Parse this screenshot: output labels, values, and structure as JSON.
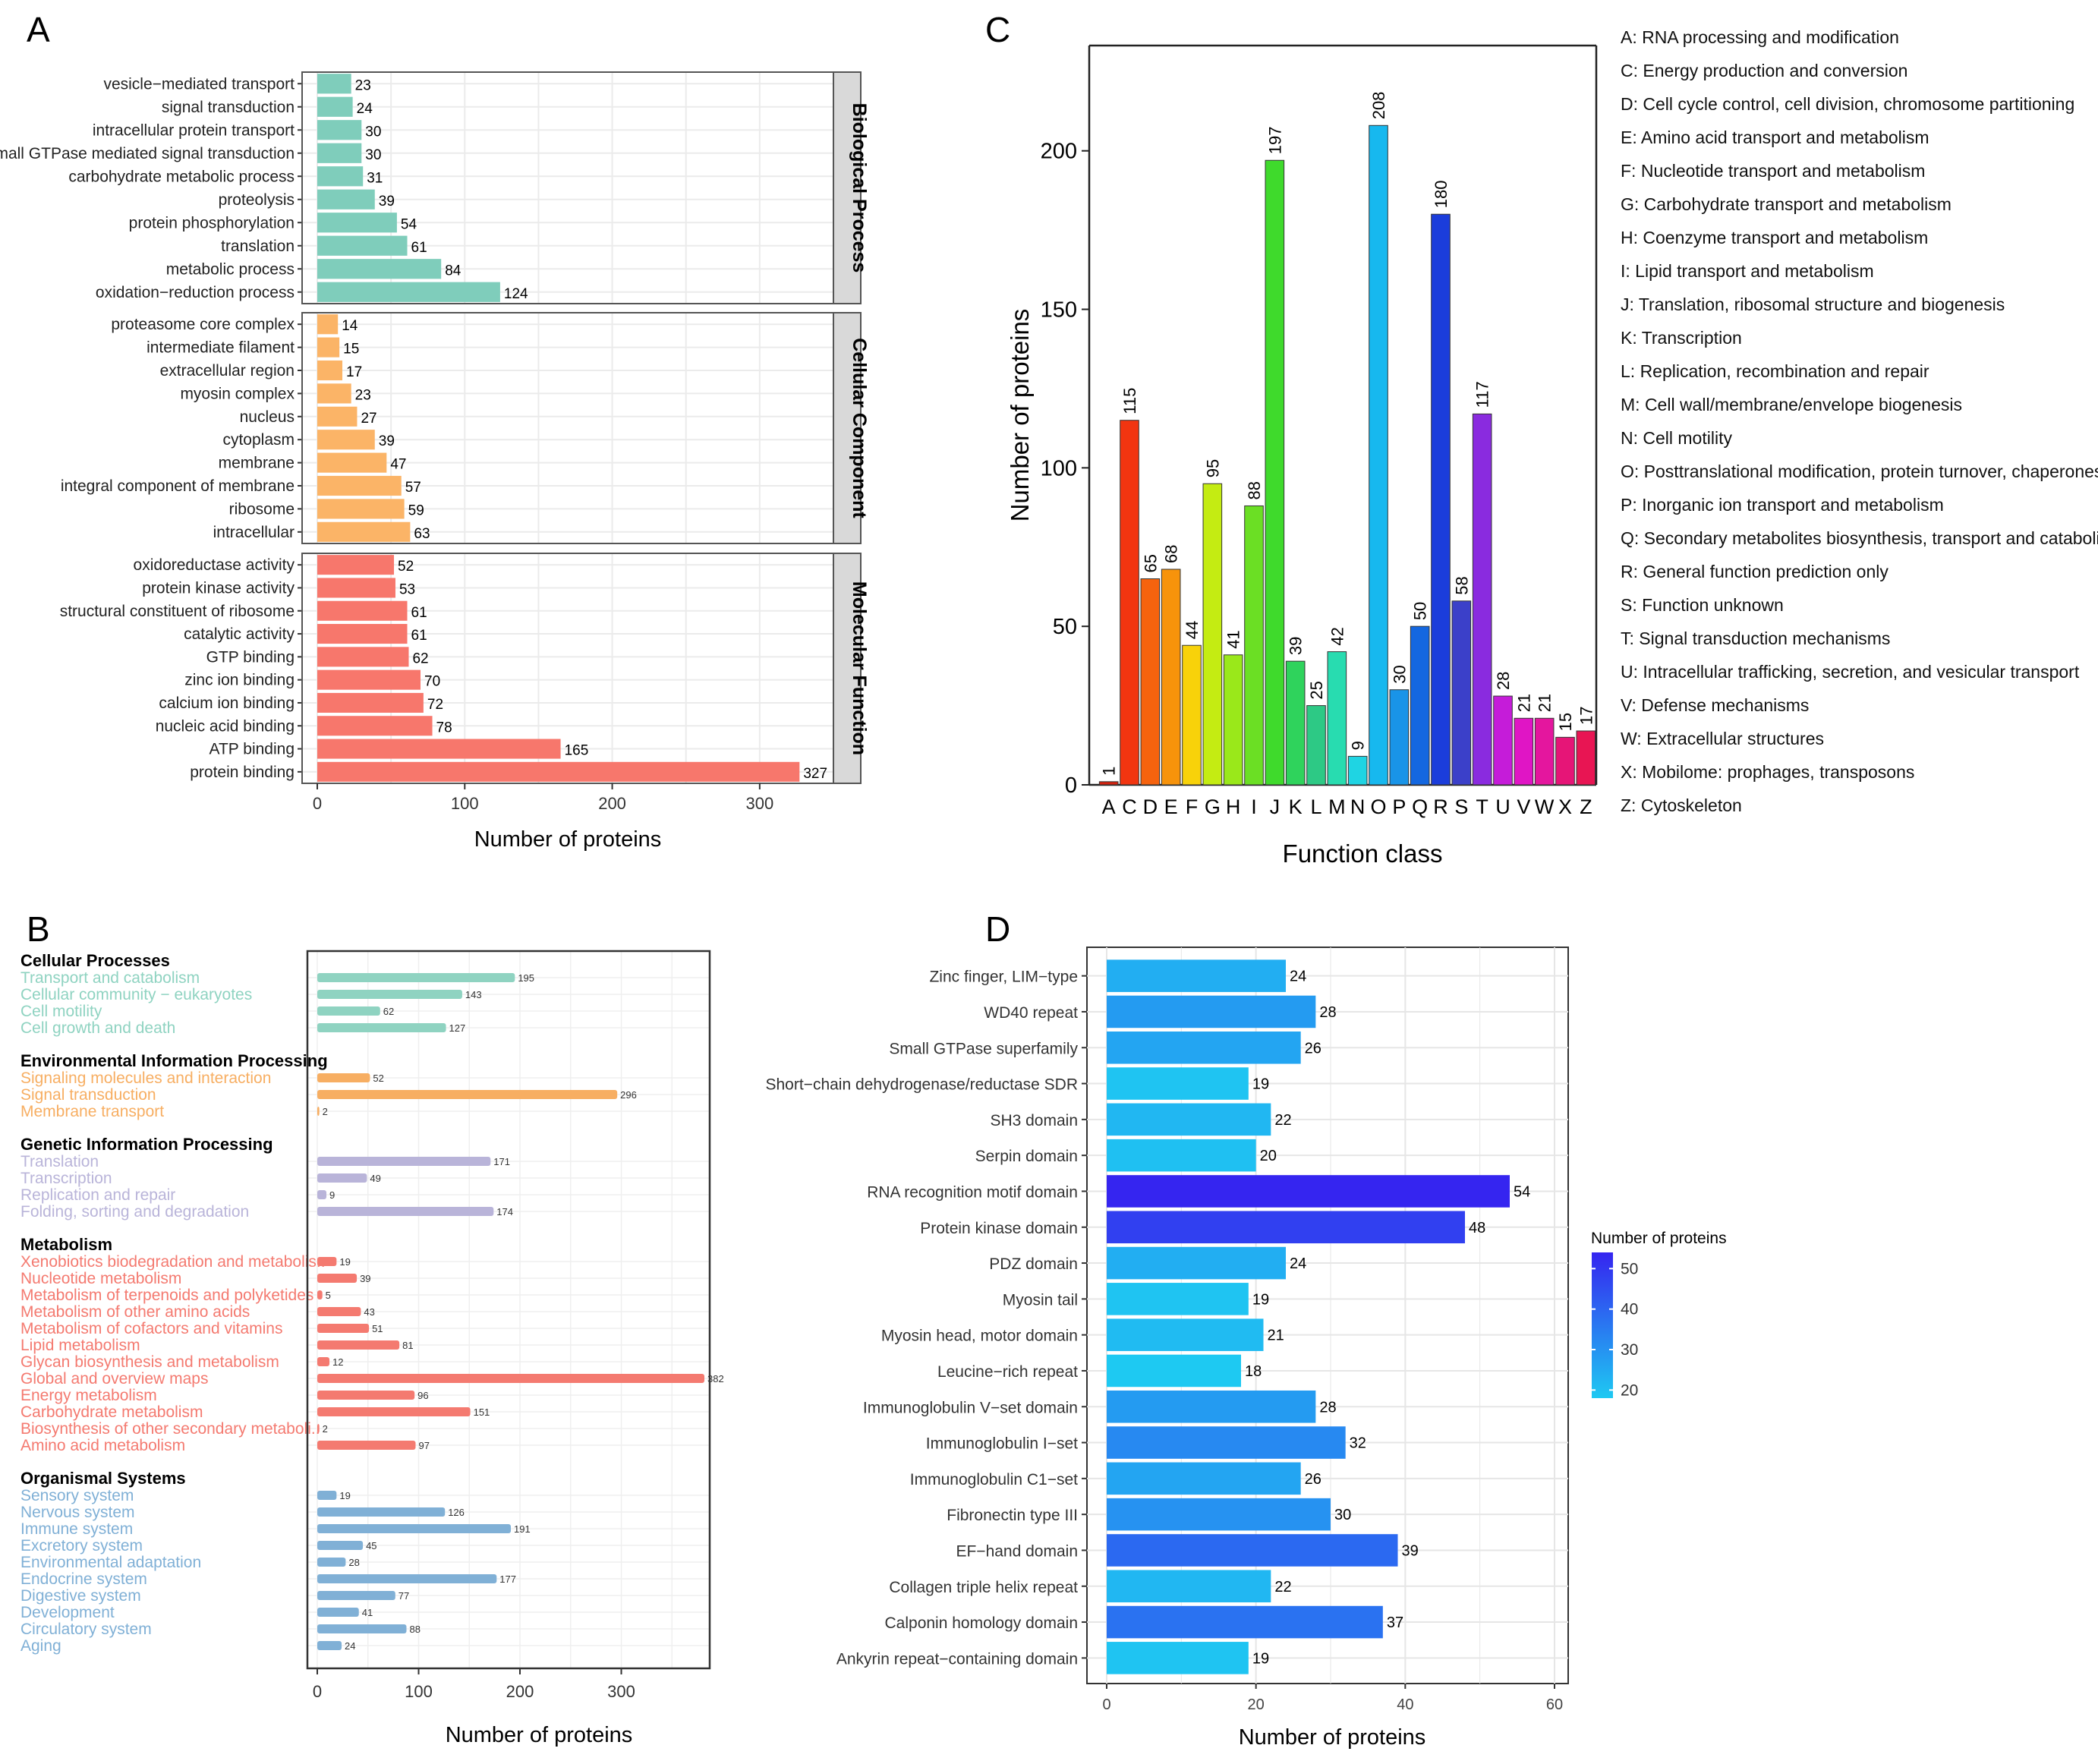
{
  "chart_data": [
    {
      "panel": "A",
      "type": "bar",
      "orientation": "horizontal",
      "xlabel": "Number of proteins",
      "xlim": [
        0,
        350
      ],
      "xticks": [
        0,
        100,
        200,
        300
      ],
      "groups": [
        {
          "name": "Biological Process",
          "color": "#7fcdbb",
          "categories": [
            "vesicle−mediated transport",
            "signal transduction",
            "intracellular protein transport",
            "small GTPase mediated signal transduction",
            "carbohydrate metabolic process",
            "proteolysis",
            "protein phosphorylation",
            "translation",
            "metabolic process",
            "oxidation−reduction process"
          ],
          "values": [
            23,
            24,
            30,
            30,
            31,
            39,
            54,
            61,
            84,
            124
          ]
        },
        {
          "name": "Cellular Component",
          "color": "#fbb467",
          "categories": [
            "proteasome core complex",
            "intermediate filament",
            "extracellular region",
            "myosin complex",
            "nucleus",
            "cytoplasm",
            "membrane",
            "integral component of membrane",
            "ribosome",
            "intracellular"
          ],
          "values": [
            14,
            15,
            17,
            23,
            27,
            39,
            47,
            57,
            59,
            63
          ]
        },
        {
          "name": "Molecular Function",
          "color": "#f7776c",
          "categories": [
            "oxidoreductase activity",
            "protein kinase activity",
            "structural constituent of ribosome",
            "catalytic activity",
            "GTP binding",
            "zinc ion binding",
            "calcium ion binding",
            "nucleic acid binding",
            "ATP binding",
            "protein binding"
          ],
          "values": [
            52,
            53,
            61,
            61,
            62,
            70,
            72,
            78,
            165,
            327
          ]
        }
      ]
    },
    {
      "panel": "B",
      "type": "bar",
      "orientation": "horizontal",
      "xlabel": "Number of proteins",
      "xlim": [
        0,
        385
      ],
      "xticks": [
        0,
        100,
        200,
        300
      ],
      "groups": [
        {
          "name": "Cellular Processes",
          "color": "#8fd3c1",
          "categories": [
            "Transport and catabolism",
            "Cellular community − eukaryotes",
            "Cell motility",
            "Cell growth and death"
          ],
          "values": [
            195,
            143,
            62,
            127
          ]
        },
        {
          "name": "Environmental Information Processing",
          "color": "#f7ae62",
          "categories": [
            "Signaling molecules and interaction",
            "Signal transduction",
            "Membrane transport"
          ],
          "values": [
            52,
            296,
            2
          ]
        },
        {
          "name": "Genetic Information Processing",
          "color": "#b9b4d9",
          "categories": [
            "Translation",
            "Transcription",
            "Replication and repair",
            "Folding, sorting and degradation"
          ],
          "values": [
            171,
            49,
            9,
            174
          ]
        },
        {
          "name": "Metabolism",
          "color": "#f47a70",
          "categories": [
            "Xenobiotics biodegradation and metabolis..",
            "Nucleotide metabolism",
            "Metabolism of terpenoids and polyketides",
            "Metabolism of other amino acids",
            "Metabolism of cofactors and vitamins",
            "Lipid metabolism",
            "Glycan biosynthesis and metabolism",
            "Global and overview maps",
            "Energy metabolism",
            "Carbohydrate metabolism",
            "Biosynthesis of other secondary metaboli..",
            "Amino acid metabolism"
          ],
          "values": [
            19,
            39,
            5,
            43,
            51,
            81,
            12,
            382,
            96,
            151,
            2,
            97
          ]
        },
        {
          "name": "Organismal Systems",
          "color": "#80b0d6",
          "categories": [
            "Sensory system",
            "Nervous system",
            "Immune system",
            "Excretory system",
            "Environmental adaptation",
            "Endocrine system",
            "Digestive system",
            "Development",
            "Circulatory system",
            "Aging"
          ],
          "values": [
            19,
            126,
            191,
            45,
            28,
            177,
            77,
            41,
            88,
            24
          ]
        }
      ]
    },
    {
      "panel": "C",
      "type": "bar",
      "orientation": "vertical",
      "xlabel": "Function class",
      "ylabel": "Number of proteins",
      "ylim": [
        0,
        230
      ],
      "yticks": [
        0,
        50,
        100,
        150,
        200
      ],
      "categories": [
        "A",
        "C",
        "D",
        "E",
        "F",
        "G",
        "H",
        "I",
        "J",
        "K",
        "L",
        "M",
        "N",
        "O",
        "P",
        "Q",
        "R",
        "S",
        "T",
        "U",
        "V",
        "W",
        "X",
        "Z"
      ],
      "values": [
        1,
        115,
        65,
        68,
        44,
        95,
        41,
        88,
        197,
        39,
        25,
        42,
        9,
        208,
        30,
        50,
        180,
        58,
        117,
        28,
        21,
        21,
        15,
        17
      ],
      "colors": [
        "#d4230f",
        "#f23510",
        "#f6630e",
        "#f7930b",
        "#f8d20a",
        "#c4ec12",
        "#9ae81a",
        "#6bdf24",
        "#3fda2c",
        "#2fd35c",
        "#2dc985",
        "#28dcb0",
        "#1fd4e3",
        "#17b8ef",
        "#1994e8",
        "#1467e0",
        "#1b3ddb",
        "#3b40c9",
        "#8a2bdf",
        "#c51cd9",
        "#e015c5",
        "#e4169e",
        "#e61577",
        "#e81553"
      ],
      "legend": [
        "A: RNA processing and modification",
        "C: Energy production and conversion",
        "D: Cell cycle control, cell division, chromosome partitioning",
        "E: Amino acid transport and metabolism",
        "F: Nucleotide transport and metabolism",
        "G: Carbohydrate transport and metabolism",
        "H: Coenzyme transport and metabolism",
        "I: Lipid transport and metabolism",
        "J: Translation, ribosomal structure and biogenesis",
        "K: Transcription",
        "L: Replication, recombination and repair",
        "M: Cell wall/membrane/envelope biogenesis",
        "N: Cell motility",
        "O: Posttranslational modification, protein turnover, chaperones",
        "P: Inorganic ion transport and metabolism",
        "Q: Secondary metabolites biosynthesis, transport and catabolism",
        "R: General function prediction only",
        "S: Function unknown",
        "T: Signal transduction mechanisms",
        "U: Intracellular trafficking, secretion, and vesicular transport",
        "V: Defense mechanisms",
        "W: Extracellular structures",
        "X: Mobilome: prophages, transposons",
        "Z: Cytoskeleton"
      ]
    },
    {
      "panel": "D",
      "type": "bar",
      "orientation": "horizontal",
      "xlabel": "Number of proteins",
      "xlim": [
        0,
        61
      ],
      "xticks": [
        0,
        20,
        40,
        60
      ],
      "categories": [
        "Zinc finger, LIM−type",
        "WD40 repeat",
        "Small GTPase superfamily",
        "Short−chain dehydrogenase/reductase SDR",
        "SH3 domain",
        "Serpin domain",
        "RNA recognition motif domain",
        "Protein kinase domain",
        "PDZ domain",
        "Myosin tail",
        "Myosin head, motor domain",
        "Leucine−rich repeat",
        "Immunoglobulin V−set domain",
        "Immunoglobulin I−set",
        "Immunoglobulin C1−set",
        "Fibronectin type III",
        "EF−hand domain",
        "Collagen triple helix repeat",
        "Calponin homology domain",
        "Ankyrin repeat−containing domain"
      ],
      "values": [
        24,
        28,
        26,
        19,
        22,
        20,
        54,
        48,
        24,
        19,
        21,
        18,
        28,
        32,
        26,
        30,
        39,
        22,
        37,
        19
      ],
      "colorbar": {
        "title": "Number of proteins",
        "ticks": [
          20,
          30,
          40,
          50
        ],
        "range": [
          18,
          54
        ],
        "low_color": "#1ec9f2",
        "high_color": "#3525f0"
      }
    }
  ],
  "panel_labels": [
    "A",
    "B",
    "C",
    "D"
  ]
}
